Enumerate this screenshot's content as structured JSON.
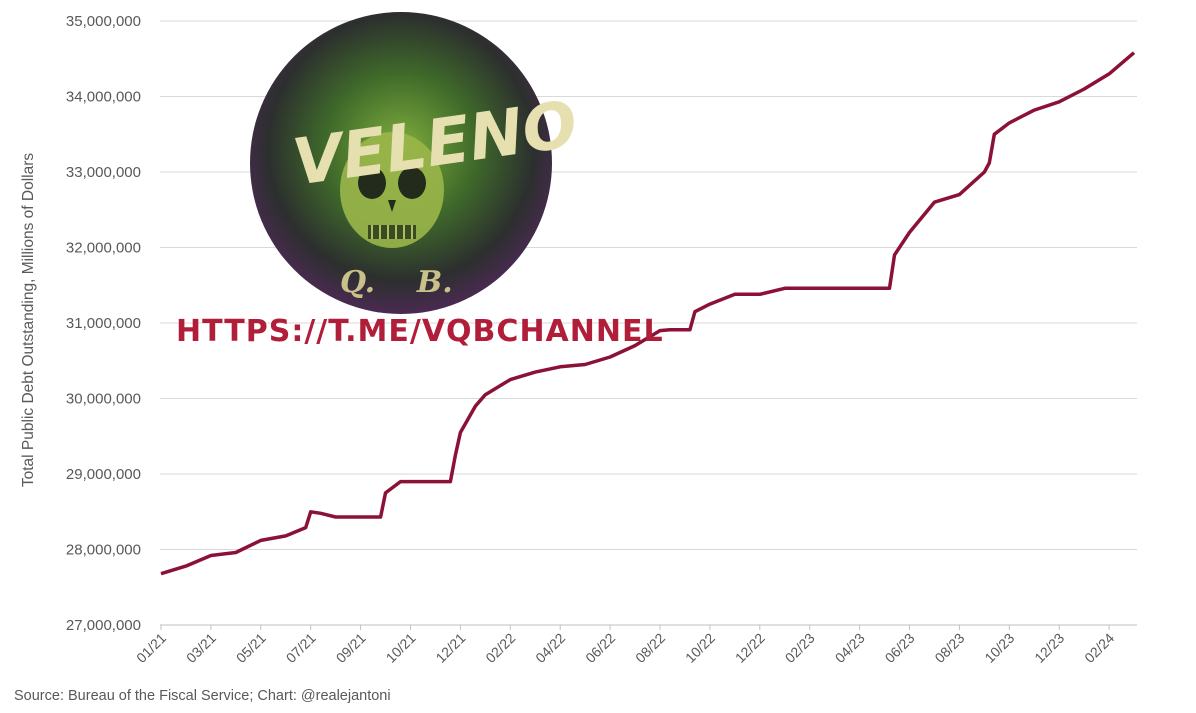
{
  "chart_data": {
    "type": "line",
    "title": "",
    "xlabel": "",
    "ylabel": "Total Public Debt Outstanding, Millions of Dollars",
    "ylim": [
      27000000,
      35000000
    ],
    "yticks": [
      "27,000,000",
      "28,000,000",
      "29,000,000",
      "30,000,000",
      "31,000,000",
      "32,000,000",
      "33,000,000",
      "34,000,000",
      "35,000,000"
    ],
    "xticks": [
      "01/21",
      "03/21",
      "05/21",
      "07/21",
      "09/21",
      "10/21",
      "12/21",
      "02/22",
      "04/22",
      "06/22",
      "08/22",
      "10/22",
      "12/22",
      "02/23",
      "04/23",
      "06/23",
      "08/23",
      "10/23",
      "12/23",
      "02/24"
    ],
    "grid": true,
    "line_color": "#8b1236",
    "series": [
      {
        "x_index": [
          0,
          0.5,
          1.0,
          1.5,
          2.0,
          2.5,
          2.9,
          3.0,
          3.2,
          3.5,
          4.4,
          4.5,
          4.8,
          5.0,
          5.5,
          5.8,
          5.9,
          6.0,
          6.3,
          6.5,
          7.0,
          7.5,
          8.0,
          8.5,
          9.0,
          9.5,
          10.0,
          10.2,
          10.6,
          10.7,
          11.0,
          11.5,
          12.0,
          12.5,
          13.0,
          13.5,
          14.0,
          14.6,
          14.7,
          15.0,
          15.5,
          16.0,
          16.5,
          16.6,
          16.7,
          17.0,
          17.5,
          18.0,
          18.5,
          19.0,
          19.5
        ],
        "values": [
          27680000,
          27780000,
          27920000,
          27960000,
          28120000,
          28180000,
          28290000,
          28500000,
          28480000,
          28430000,
          28430000,
          28750000,
          28900000,
          28900000,
          28900000,
          28900000,
          29250000,
          29550000,
          29900000,
          30050000,
          30250000,
          30350000,
          30420000,
          30450000,
          30550000,
          30700000,
          30900000,
          30910000,
          30910000,
          31150000,
          31250000,
          31380000,
          31380000,
          31460000,
          31460000,
          31460000,
          31460000,
          31460000,
          31900000,
          32200000,
          32600000,
          32700000,
          33000000,
          33120000,
          33500000,
          33650000,
          33820000,
          33930000,
          34100000,
          34300000,
          34580000
        ]
      }
    ]
  },
  "source_text": "Source: Bureau of the Fiscal Service; Chart: @realejantoni",
  "watermark": {
    "logo_text": "VELENO",
    "logo_letters": "Q. B.",
    "url_text": "HTTPS://T.ME/VQBCHANNEL"
  }
}
